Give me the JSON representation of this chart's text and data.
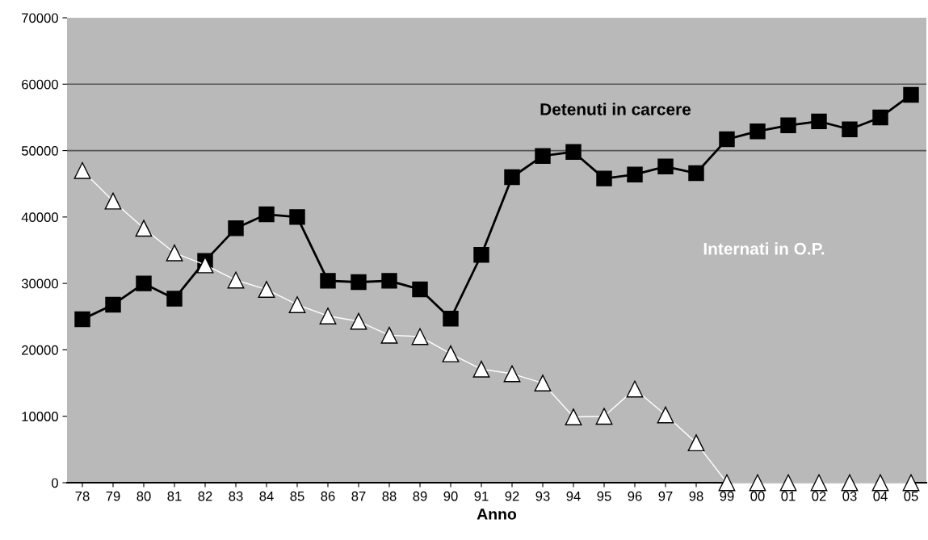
{
  "chart_data": {
    "type": "line",
    "xlabel": "Anno",
    "categories": [
      "78",
      "79",
      "80",
      "81",
      "82",
      "83",
      "84",
      "85",
      "86",
      "87",
      "88",
      "89",
      "90",
      "91",
      "92",
      "93",
      "94",
      "95",
      "96",
      "97",
      "98",
      "99",
      "00",
      "01",
      "02",
      "03",
      "04",
      "05"
    ],
    "series": [
      {
        "name": "Detenuti in carcere",
        "color": "#000000",
        "marker": "square",
        "line_style": "solid",
        "values": [
          24600,
          26800,
          30000,
          27700,
          33400,
          38300,
          40400,
          40000,
          30400,
          30200,
          30400,
          29100,
          24700,
          34300,
          46000,
          49200,
          49800,
          45800,
          46400,
          47600,
          46600,
          51700,
          52900,
          53800,
          54400,
          53200,
          55000,
          58400
        ]
      },
      {
        "name": "Internati in O.P.",
        "color": "#ffffff",
        "marker": "triangle",
        "line_style": "solid",
        "values": [
          47000,
          42400,
          38300,
          34600,
          32800,
          30500,
          29100,
          26800,
          25100,
          24300,
          22200,
          22000,
          19400,
          17100,
          16400,
          15000,
          9900,
          10000,
          14100,
          10200,
          6000,
          0,
          0,
          0,
          0,
          0,
          0,
          0
        ]
      }
    ],
    "ylim": [
      0,
      70000
    ],
    "yticks": [
      0,
      10000,
      20000,
      30000,
      40000,
      50000,
      60000,
      70000
    ],
    "ref_lines": [
      {
        "axis": "y",
        "value": 50000,
        "color": "#555555"
      },
      {
        "axis": "y",
        "value": 60000,
        "color": "#555555"
      }
    ],
    "grid": false,
    "legend": false
  }
}
